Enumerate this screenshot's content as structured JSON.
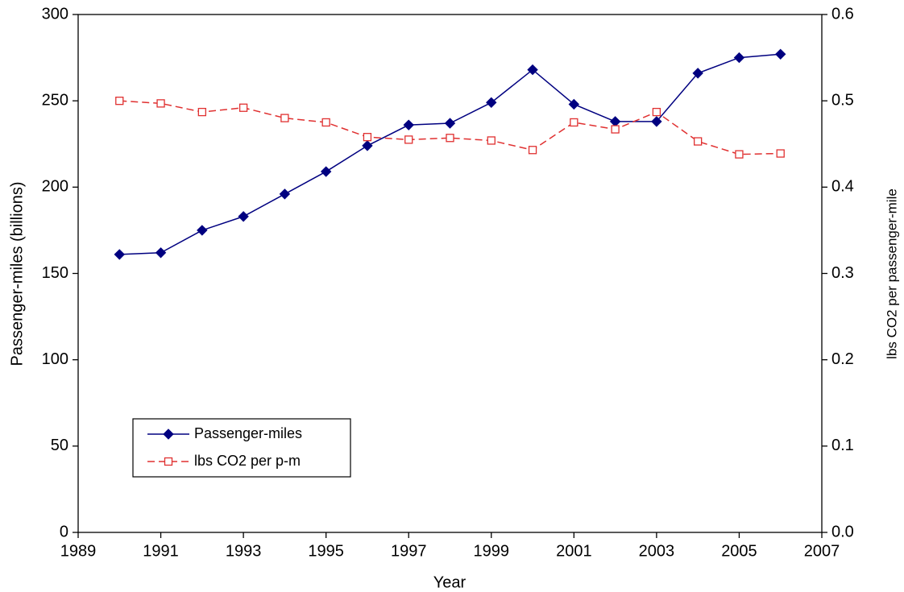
{
  "chart_data": {
    "type": "line",
    "x_label": "Year",
    "y_label": "Passenger-miles (billions)",
    "y2_label": "lbs CO2 per passenger-mile",
    "x": [
      1990,
      1991,
      1992,
      1993,
      1994,
      1995,
      1996,
      1997,
      1998,
      1999,
      2000,
      2001,
      2002,
      2003,
      2004,
      2005,
      2006
    ],
    "series": [
      {
        "name": "Passenger-miles",
        "color": "#000080",
        "marker": "diamond",
        "line_style": "solid",
        "axis": "y",
        "values": [
          161,
          162,
          175,
          183,
          196,
          209,
          224,
          236,
          237,
          249,
          268,
          248,
          238,
          238,
          266,
          275,
          277
        ]
      },
      {
        "name": "lbs CO2 per p-m",
        "color": "#e03030",
        "marker": "square",
        "line_style": "dashed",
        "axis": "y2",
        "values": [
          0.5,
          0.497,
          0.487,
          0.492,
          0.48,
          0.475,
          0.458,
          0.455,
          0.457,
          0.454,
          0.443,
          0.475,
          0.467,
          0.487,
          0.453,
          0.438,
          0.439
        ]
      }
    ],
    "xlim": [
      1989,
      2007
    ],
    "xticks": [
      1989,
      1991,
      1993,
      1995,
      1997,
      1999,
      2001,
      2003,
      2005,
      2007
    ],
    "ylim": [
      0,
      300
    ],
    "yticks": [
      0,
      50,
      100,
      150,
      200,
      250,
      300
    ],
    "y2lim": [
      0,
      0.6
    ],
    "y2ticks": [
      {
        "value": 0,
        "label": "0.0"
      },
      0.1,
      0.2,
      0.3,
      0.4,
      0.5,
      0.6
    ],
    "legend_position": "lower left",
    "grid": false
  }
}
